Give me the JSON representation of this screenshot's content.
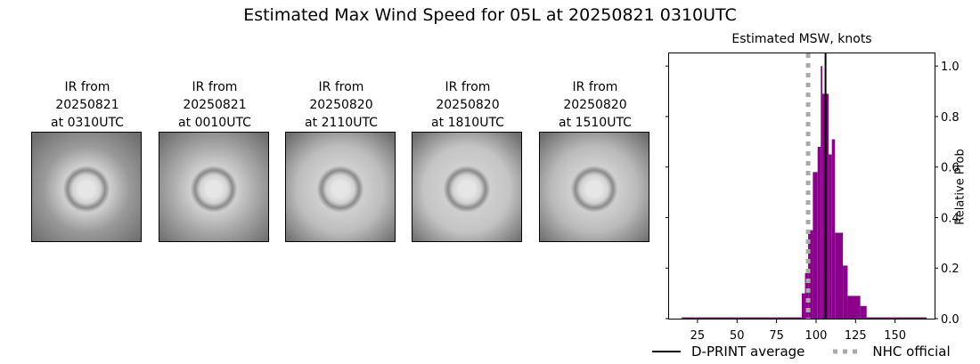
{
  "figure": {
    "title": "Estimated Max Wind Speed for 05L at 20250821 0310UTC"
  },
  "ir_panels": [
    {
      "label": "IR from\n20250821\nat 0310UTC",
      "tone": "#9a9a9a"
    },
    {
      "label": "IR from\n20250821\nat 0010UTC",
      "tone": "#a8a8a8"
    },
    {
      "label": "IR from\n20250820\nat 2110UTC",
      "tone": "#bdbdbd"
    },
    {
      "label": "IR from\n20250820\nat 1810UTC",
      "tone": "#c4c4c4"
    },
    {
      "label": "IR from\n20250820\nat 1510UTC",
      "tone": "#bababa"
    }
  ],
  "chart_data": {
    "type": "bar",
    "title": "Estimated MSW, knots",
    "xlabel": "",
    "ylabel": "Relative Prob",
    "xlim": [
      7,
      175
    ],
    "ylim": [
      0,
      1.05
    ],
    "xticks": [
      25,
      50,
      75,
      100,
      125,
      150
    ],
    "yticks": [
      0.0,
      0.2,
      0.4,
      0.6,
      0.8,
      1.0
    ],
    "bar_color": "#8b008b",
    "bins": [
      {
        "x0": 15,
        "x1": 91,
        "value": 0.005
      },
      {
        "x0": 91,
        "x1": 93,
        "value": 0.1
      },
      {
        "x0": 93,
        "x1": 95,
        "value": 0.18
      },
      {
        "x0": 95,
        "x1": 98,
        "value": 0.35
      },
      {
        "x0": 98,
        "x1": 101,
        "value": 0.58
      },
      {
        "x0": 101,
        "x1": 103,
        "value": 0.68
      },
      {
        "x0": 103,
        "x1": 104,
        "value": 1.0
      },
      {
        "x0": 104,
        "x1": 108,
        "value": 0.89
      },
      {
        "x0": 108,
        "x1": 110,
        "value": 0.65
      },
      {
        "x0": 110,
        "x1": 112,
        "value": 0.71
      },
      {
        "x0": 112,
        "x1": 117,
        "value": 0.34
      },
      {
        "x0": 117,
        "x1": 120,
        "value": 0.21
      },
      {
        "x0": 120,
        "x1": 128,
        "value": 0.09
      },
      {
        "x0": 128,
        "x1": 132,
        "value": 0.05
      },
      {
        "x0": 132,
        "x1": 170,
        "value": 0.005
      }
    ],
    "lines": [
      {
        "name": "D-PRINT average",
        "x": 106,
        "color": "#000000",
        "style": "solid"
      },
      {
        "name": "NHC official",
        "x": 95,
        "color": "#aaaaaa",
        "style": "dotted"
      }
    ],
    "legend": {
      "position": "bottom",
      "entries": [
        "D-PRINT average",
        "NHC official"
      ]
    }
  }
}
